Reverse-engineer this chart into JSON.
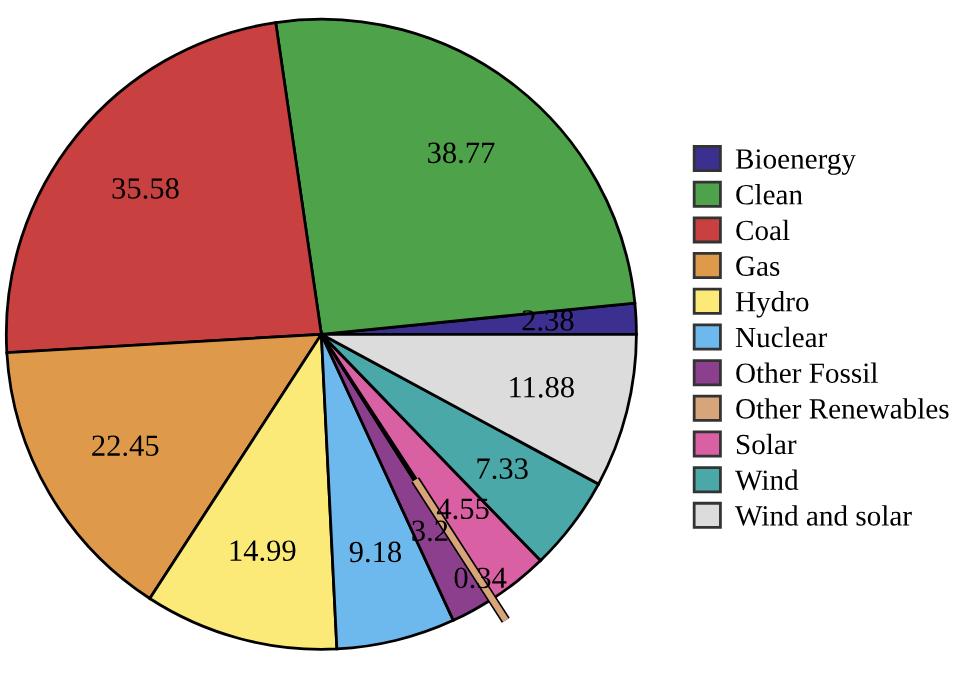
{
  "chart_data": {
    "type": "pie",
    "categories": [
      "Bioenergy",
      "Clean",
      "Coal",
      "Gas",
      "Hydro",
      "Nuclear",
      "Other Fossil",
      "Other Renewables",
      "Solar",
      "Wind",
      "Wind and solar"
    ],
    "values": [
      2.38,
      38.77,
      35.58,
      22.45,
      14.99,
      9.18,
      3.2,
      0.34,
      4.55,
      7.33,
      11.88
    ],
    "colors": [
      "#3b2f8f",
      "#4ea24a",
      "#c94040",
      "#de9a4a",
      "#fbe978",
      "#6db8ec",
      "#8b3f8c",
      "#d8a57a",
      "#d960a3",
      "#4aa8a8",
      "#dcdcdc"
    ],
    "data_labels": true,
    "legend": "right"
  }
}
